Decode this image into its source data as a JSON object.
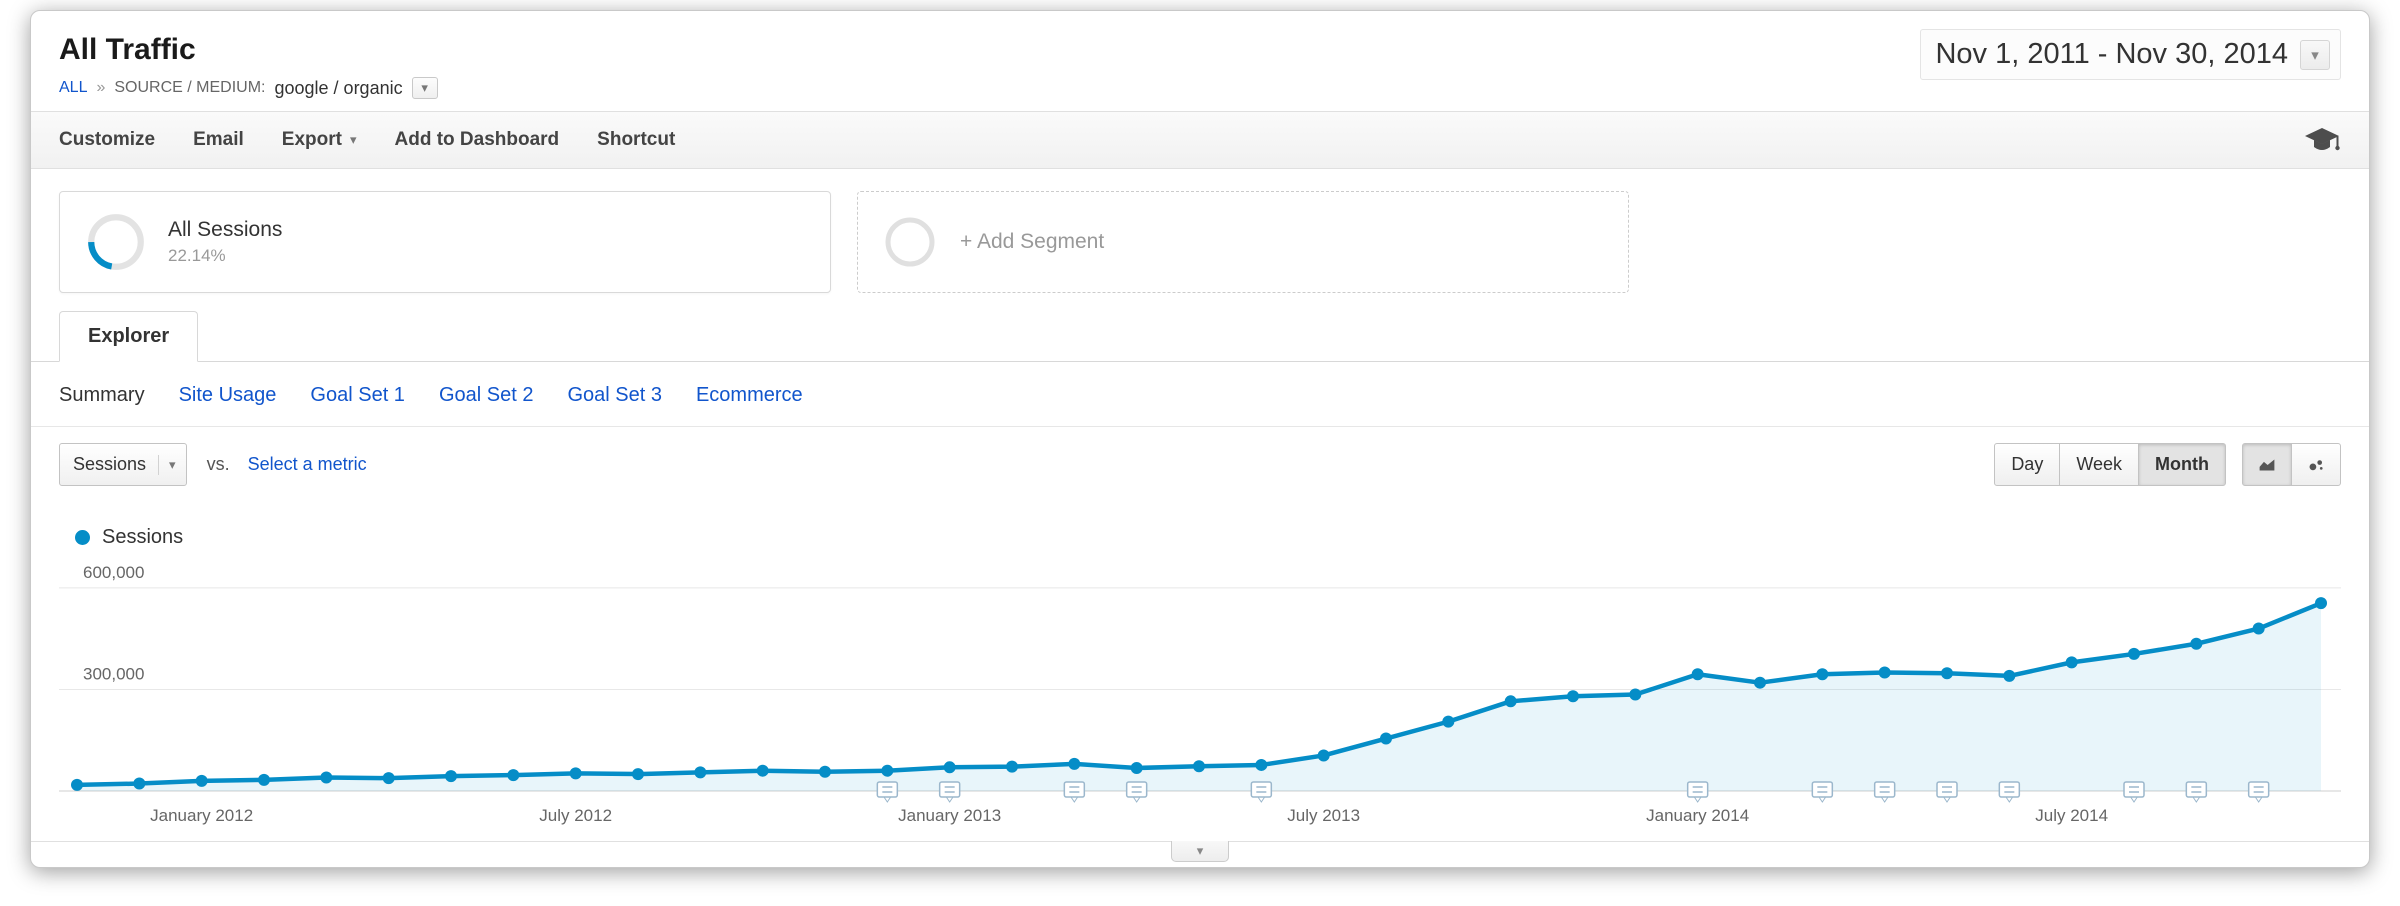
{
  "header": {
    "title": "All Traffic",
    "date_range": "Nov 1, 2011 - Nov 30, 2014",
    "breadcrumb": {
      "root": "ALL",
      "separator": "»",
      "dimension_label": "SOURCE / MEDIUM:",
      "dimension_value": "google / organic"
    }
  },
  "toolbar": {
    "customize": "Customize",
    "email": "Email",
    "export": "Export",
    "add_to_dashboard": "Add to Dashboard",
    "shortcut": "Shortcut"
  },
  "segments": {
    "all_sessions": {
      "title": "All Sessions",
      "percent": "22.14%"
    },
    "add_segment_label": "+ Add Segment"
  },
  "tabs": {
    "explorer": "Explorer"
  },
  "subnav": {
    "items": [
      "Summary",
      "Site Usage",
      "Goal Set 1",
      "Goal Set 2",
      "Goal Set 3",
      "Ecommerce"
    ],
    "active": "Summary"
  },
  "controls": {
    "metric_select": "Sessions",
    "vs_label": "vs.",
    "select_metric_link": "Select a metric",
    "granularity": [
      "Day",
      "Week",
      "Month"
    ],
    "granularity_active": "Month"
  },
  "legend": {
    "series": "Sessions"
  },
  "icons": {
    "caret_down": "▾"
  },
  "colors": {
    "accent_blue": "#058dc7",
    "link_blue": "#1155cc"
  },
  "chart_data": {
    "type": "line",
    "title": "Sessions over time",
    "series_name": "Sessions",
    "color": "#058dc7",
    "x": [
      "Nov 2011",
      "Dec 2011",
      "Jan 2012",
      "Feb 2012",
      "Mar 2012",
      "Apr 2012",
      "May 2012",
      "Jun 2012",
      "Jul 2012",
      "Aug 2012",
      "Sep 2012",
      "Oct 2012",
      "Nov 2012",
      "Dec 2012",
      "Jan 2013",
      "Feb 2013",
      "Mar 2013",
      "Apr 2013",
      "May 2013",
      "Jun 2013",
      "Jul 2013",
      "Aug 2013",
      "Sep 2013",
      "Oct 2013",
      "Nov 2013",
      "Dec 2013",
      "Jan 2014",
      "Feb 2014",
      "Mar 2014",
      "Apr 2014",
      "May 2014",
      "Jun 2014",
      "Jul 2014",
      "Aug 2014",
      "Sep 2014",
      "Oct 2014",
      "Nov 2014"
    ],
    "values": [
      18000,
      22000,
      30000,
      33000,
      40000,
      38000,
      44000,
      47000,
      52000,
      50000,
      55000,
      60000,
      57000,
      60000,
      70000,
      72000,
      80000,
      68000,
      73000,
      77000,
      105000,
      155000,
      205000,
      265000,
      280000,
      285000,
      345000,
      320000,
      345000,
      350000,
      348000,
      340000,
      380000,
      405000,
      435000,
      480000,
      555000
    ],
    "ylim": [
      0,
      650000
    ],
    "y_ticks": [
      {
        "value": 300000,
        "label": "300,000"
      },
      {
        "value": 600000,
        "label": "600,000"
      }
    ],
    "x_ticks": [
      {
        "index": 2,
        "label": "January 2012"
      },
      {
        "index": 8,
        "label": "July 2012"
      },
      {
        "index": 14,
        "label": "January 2013"
      },
      {
        "index": 20,
        "label": "July 2013"
      },
      {
        "index": 26,
        "label": "January 2014"
      },
      {
        "index": 32,
        "label": "July 2014"
      }
    ],
    "annotation_indices": [
      13,
      14,
      16,
      17,
      19,
      26,
      28,
      29,
      30,
      31,
      33,
      34,
      35
    ],
    "grid": true,
    "legend_position": "top-left"
  }
}
